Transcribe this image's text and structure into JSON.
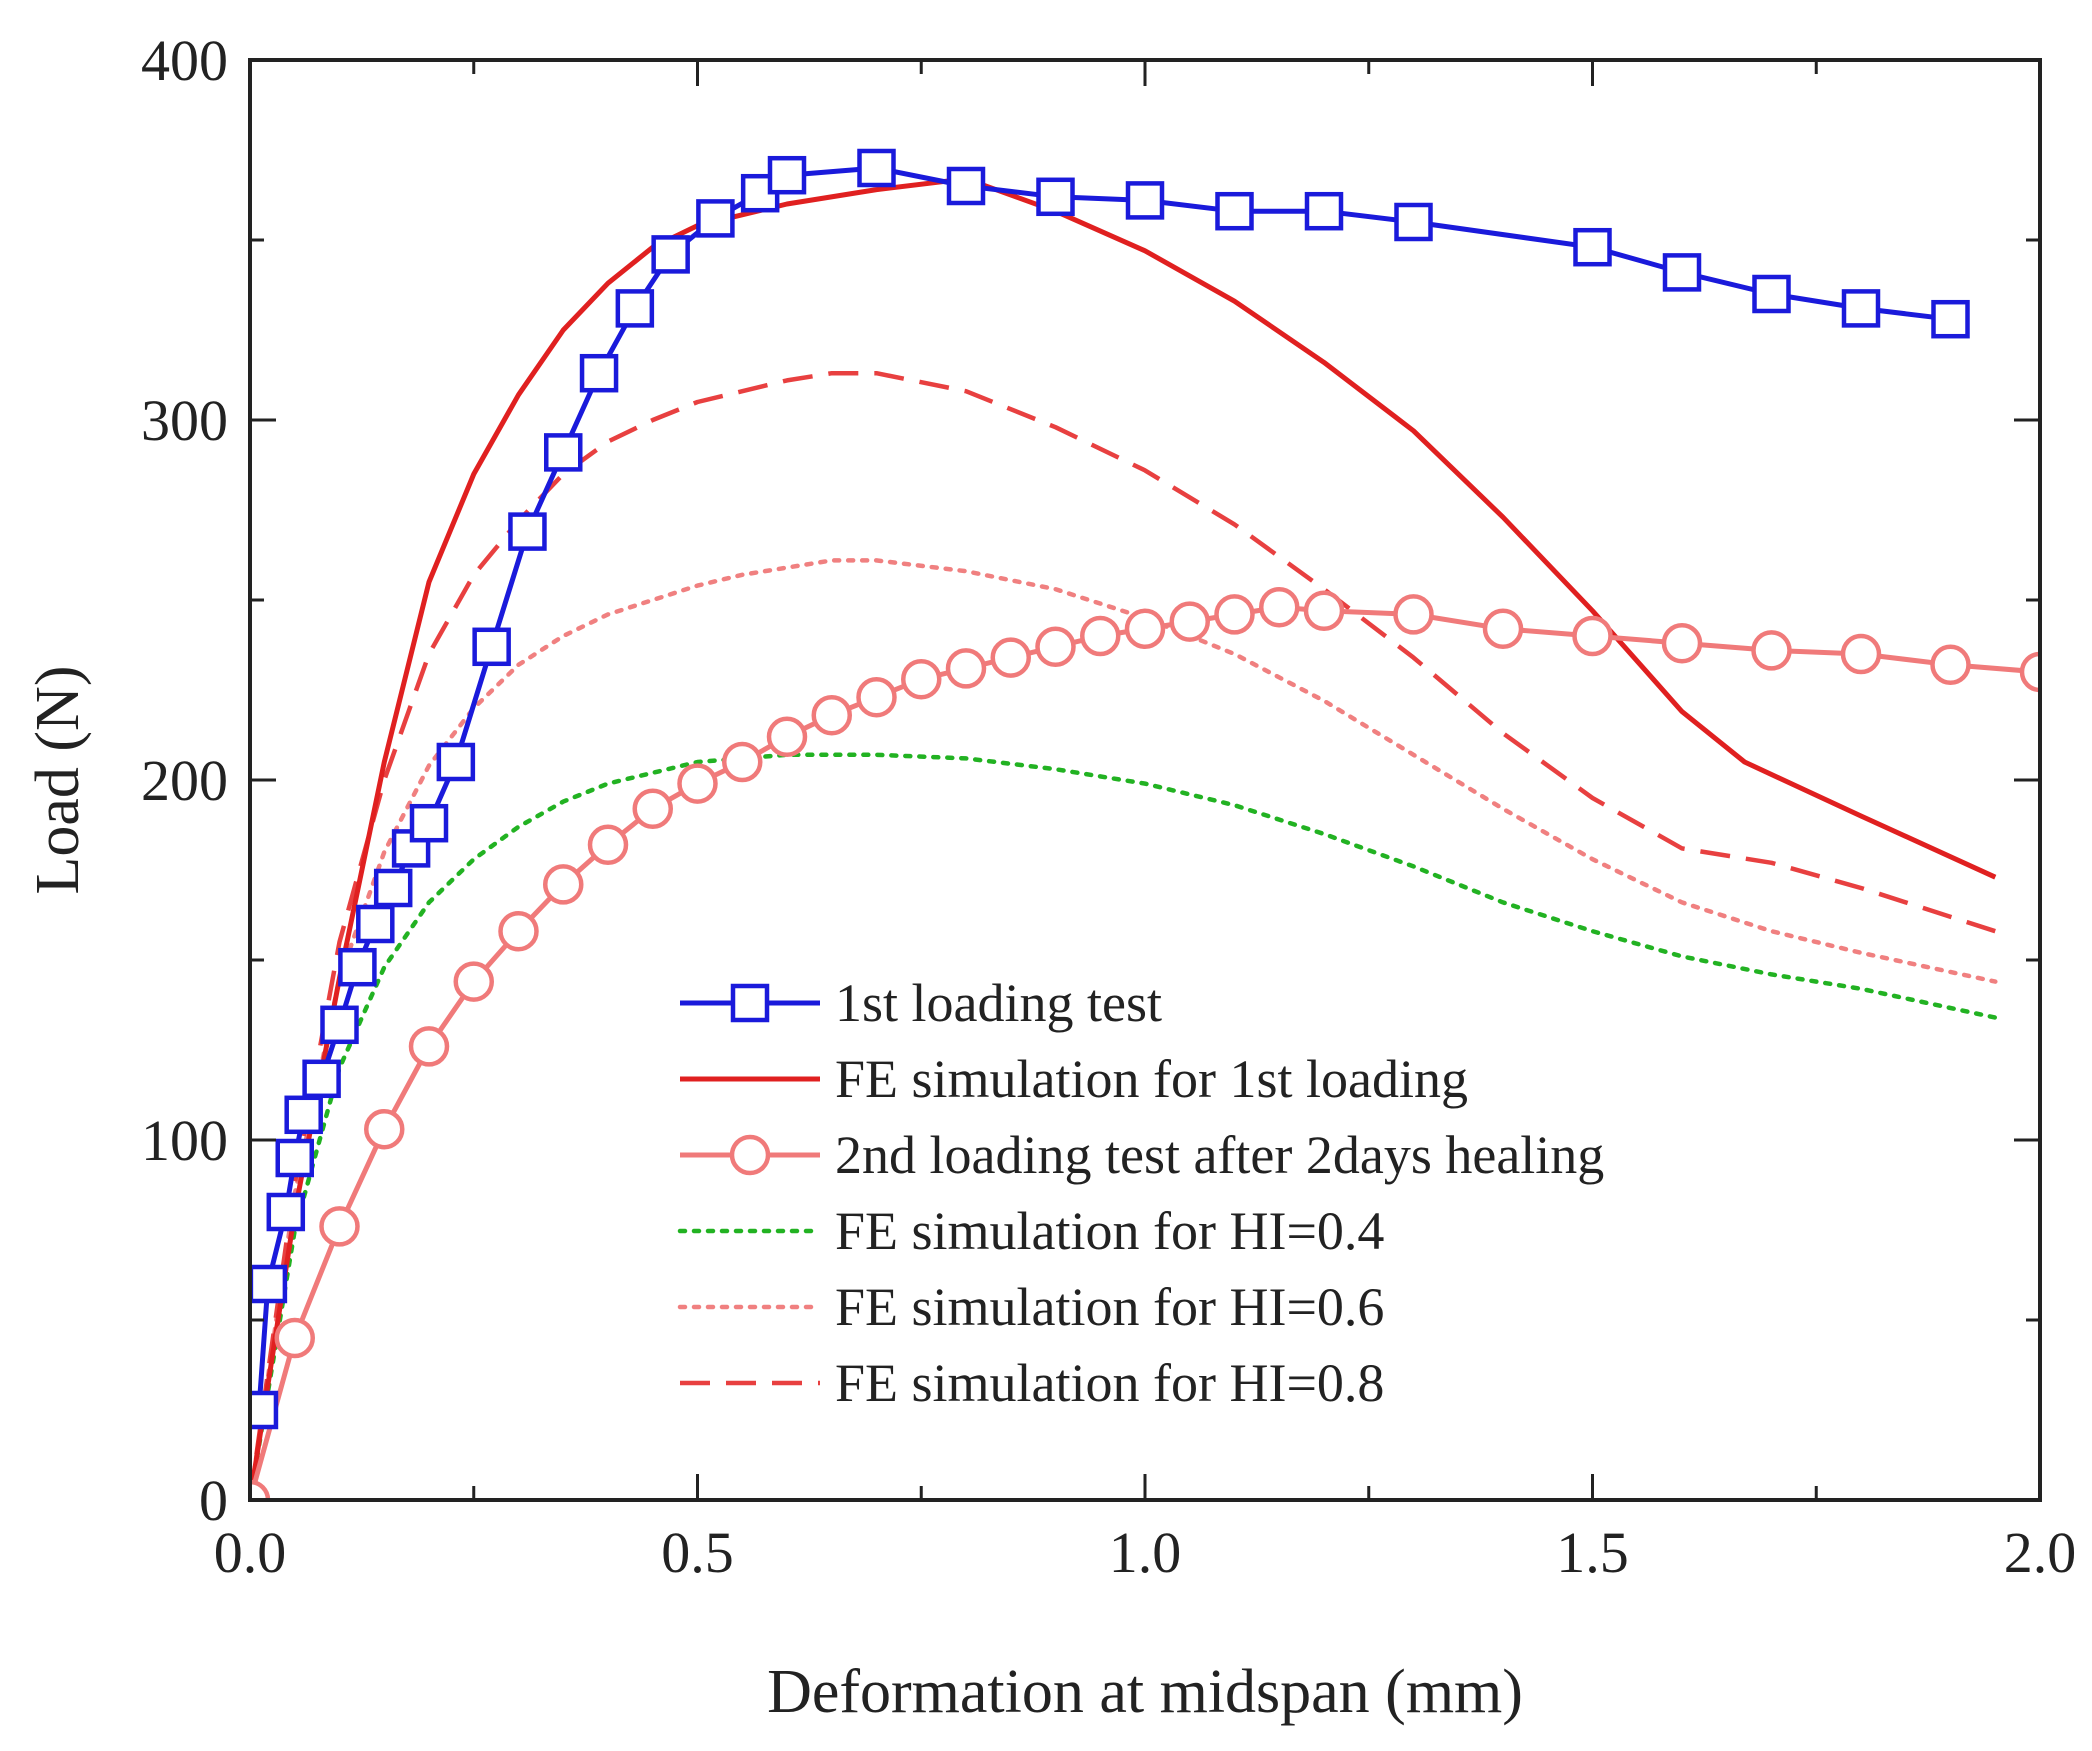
{
  "chart_data": {
    "type": "line",
    "title": "",
    "xlabel": "Deformation at midspan (mm)",
    "ylabel": "Load (N)",
    "xlim": [
      0,
      2.0
    ],
    "ylim": [
      0,
      400
    ],
    "xticks": [
      0,
      0.5,
      1.0,
      1.5,
      2.0
    ],
    "xtick_labels": [
      "0.0",
      "0.5",
      "1.0",
      "1.5",
      "2.0"
    ],
    "yticks": [
      0,
      100,
      200,
      300,
      400
    ],
    "ytick_labels": [
      "0",
      "100",
      "200",
      "300",
      "400"
    ],
    "grid": false,
    "legend_position": "bottom-center",
    "series": [
      {
        "name": "1st loading test",
        "color": "#1a1adb",
        "line": "solid",
        "marker": "square",
        "x": [
          0.01,
          0.02,
          0.04,
          0.05,
          0.06,
          0.08,
          0.1,
          0.12,
          0.14,
          0.16,
          0.18,
          0.2,
          0.23,
          0.27,
          0.31,
          0.35,
          0.39,
          0.43,
          0.47,
          0.52,
          0.57,
          0.6,
          0.7,
          0.8,
          0.9,
          1.0,
          1.1,
          1.2,
          1.3,
          1.5,
          1.6,
          1.7,
          1.8,
          1.9
        ],
        "y": [
          25,
          60,
          80,
          95,
          107,
          117,
          132,
          148,
          160,
          170,
          181,
          188,
          205,
          237,
          269,
          291,
          313,
          331,
          346,
          356,
          363,
          368,
          370,
          365,
          362,
          361,
          358,
          358,
          355,
          348,
          341,
          335,
          331,
          328
        ]
      },
      {
        "name": "FE simulation for 1st loading",
        "color": "#e02020",
        "line": "solid",
        "marker": "none",
        "x": [
          0.0,
          0.05,
          0.1,
          0.15,
          0.2,
          0.25,
          0.3,
          0.35,
          0.4,
          0.45,
          0.5,
          0.6,
          0.7,
          0.8,
          0.9,
          1.0,
          1.1,
          1.2,
          1.3,
          1.4,
          1.5,
          1.6,
          1.67,
          1.8,
          1.95
        ],
        "y": [
          0,
          80,
          145,
          205,
          255,
          285,
          307,
          325,
          338,
          348,
          354,
          360,
          364,
          367,
          358,
          347,
          333,
          316,
          297,
          273,
          247,
          219,
          205,
          190,
          173
        ]
      },
      {
        "name": "2nd loading test after 2days healing",
        "color": "#f07a7a",
        "line": "solid",
        "marker": "circle",
        "x": [
          0.0,
          0.05,
          0.1,
          0.15,
          0.2,
          0.25,
          0.3,
          0.35,
          0.4,
          0.45,
          0.5,
          0.55,
          0.6,
          0.65,
          0.7,
          0.75,
          0.8,
          0.85,
          0.9,
          0.95,
          1.0,
          1.05,
          1.1,
          1.15,
          1.2,
          1.3,
          1.4,
          1.5,
          1.6,
          1.7,
          1.8,
          1.9,
          2.0
        ],
        "y": [
          0,
          45,
          76,
          103,
          126,
          144,
          158,
          171,
          182,
          192,
          199,
          205,
          212,
          218,
          223,
          228,
          231,
          234,
          237,
          240,
          242,
          244,
          246,
          248,
          247,
          246,
          242,
          240,
          238,
          236,
          235,
          232,
          230
        ]
      },
      {
        "name": "FE simulation for HI=0.4",
        "color": "#22b222",
        "line": "dotted",
        "marker": "none",
        "x": [
          0.0,
          0.05,
          0.1,
          0.15,
          0.2,
          0.25,
          0.3,
          0.35,
          0.4,
          0.45,
          0.5,
          0.6,
          0.7,
          0.8,
          0.9,
          1.0,
          1.1,
          1.2,
          1.3,
          1.4,
          1.5,
          1.6,
          1.7,
          1.8,
          1.95
        ],
        "y": [
          0,
          75,
          120,
          148,
          166,
          178,
          187,
          194,
          199,
          202,
          205,
          207,
          207,
          206,
          203,
          199,
          193,
          185,
          176,
          166,
          158,
          151,
          146,
          142,
          134
        ]
      },
      {
        "name": "FE simulation for HI=0.6",
        "color": "#f08080",
        "line": "dotted",
        "marker": "none",
        "x": [
          0.0,
          0.05,
          0.1,
          0.15,
          0.2,
          0.25,
          0.3,
          0.35,
          0.4,
          0.45,
          0.5,
          0.55,
          0.6,
          0.65,
          0.7,
          0.8,
          0.9,
          1.0,
          1.1,
          1.2,
          1.3,
          1.4,
          1.5,
          1.6,
          1.7,
          1.8,
          1.95
        ],
        "y": [
          0,
          85,
          145,
          180,
          204,
          220,
          232,
          240,
          246,
          250,
          254,
          257,
          259,
          261,
          261,
          258,
          253,
          245,
          235,
          222,
          207,
          192,
          178,
          166,
          158,
          152,
          144
        ]
      },
      {
        "name": "FE simulation for HI=0.8",
        "color": "#e84040",
        "line": "dashed",
        "marker": "none",
        "x": [
          0.0,
          0.05,
          0.1,
          0.15,
          0.2,
          0.25,
          0.3,
          0.35,
          0.4,
          0.45,
          0.5,
          0.55,
          0.6,
          0.65,
          0.7,
          0.8,
          0.9,
          1.0,
          1.1,
          1.2,
          1.3,
          1.4,
          1.5,
          1.6,
          1.7,
          1.8,
          1.95
        ],
        "y": [
          0,
          88,
          155,
          200,
          235,
          257,
          272,
          285,
          294,
          300,
          305,
          308,
          311,
          313,
          313,
          308,
          298,
          286,
          271,
          253,
          234,
          213,
          195,
          181,
          177,
          170,
          158
        ]
      }
    ]
  }
}
